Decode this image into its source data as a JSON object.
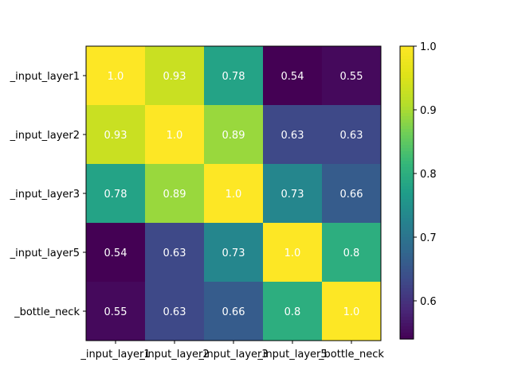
{
  "chart_data": {
    "type": "heatmap",
    "row_labels": [
      "_input_layer1",
      "_input_layer2",
      "_input_layer3",
      "_input_layer5",
      "_bottle_neck"
    ],
    "col_labels": [
      "_input_layer1",
      "_input_layer2",
      "_input_layer3",
      "_input_layer5",
      "_bottle_neck"
    ],
    "values": [
      [
        1.0,
        0.93,
        0.78,
        0.54,
        0.55
      ],
      [
        0.93,
        1.0,
        0.89,
        0.63,
        0.63
      ],
      [
        0.78,
        0.89,
        1.0,
        0.73,
        0.66
      ],
      [
        0.54,
        0.63,
        0.73,
        1.0,
        0.8
      ],
      [
        0.55,
        0.63,
        0.66,
        0.8,
        1.0
      ]
    ],
    "value_labels": [
      [
        "1.0",
        "0.93",
        "0.78",
        "0.54",
        "0.55"
      ],
      [
        "0.93",
        "1.0",
        "0.89",
        "0.63",
        "0.63"
      ],
      [
        "0.78",
        "0.89",
        "1.0",
        "0.73",
        "0.66"
      ],
      [
        "0.54",
        "0.63",
        "0.73",
        "1.0",
        "0.8"
      ],
      [
        "0.55",
        "0.63",
        "0.66",
        "0.8",
        "1.0"
      ]
    ],
    "colormap": "viridis",
    "vmin": 0.54,
    "vmax": 1.0,
    "colorbar_ticks": [
      {
        "value": 0.6,
        "label": "0.6"
      },
      {
        "value": 0.7,
        "label": "0.7"
      },
      {
        "value": 0.8,
        "label": "0.8"
      },
      {
        "value": 0.9,
        "label": "0.9"
      },
      {
        "value": 1.0,
        "label": "1.0"
      }
    ],
    "title": "",
    "xlabel": "",
    "ylabel": "",
    "annotation_color": "#ffffff",
    "text_color": "#000000"
  }
}
